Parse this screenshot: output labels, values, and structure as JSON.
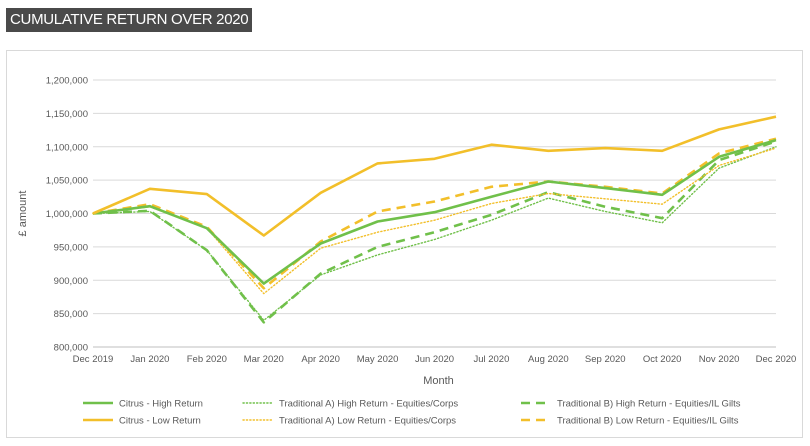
{
  "page": {
    "banner_title": "CUMULATIVE RETURN OVER 2020"
  },
  "chart_data": {
    "type": "line",
    "title": "",
    "xlabel": "Month",
    "ylabel": "£ amount",
    "ylim": [
      800000,
      1200000
    ],
    "ytick_step": 50000,
    "grid": "horizontal",
    "legend_position": "bottom",
    "categories": [
      "Dec 2019",
      "Jan 2020",
      "Feb 2020",
      "Mar 2020",
      "Apr 2020",
      "May 2020",
      "Jun 2020",
      "Jul 2020",
      "Aug 2020",
      "Sep 2020",
      "Oct 2020",
      "Nov 2020",
      "Dec 2020"
    ],
    "series": [
      {
        "name": "Citrus - High Return",
        "color": "#70c04a",
        "style": "solid",
        "values": [
          1000000,
          1011000,
          978000,
          895000,
          955000,
          988000,
          1002000,
          1025000,
          1048000,
          1038000,
          1028000,
          1085000,
          1110000
        ]
      },
      {
        "name": "Traditional A) High Return - Equities/Corps",
        "color": "#70c04a",
        "style": "dotted",
        "values": [
          1000000,
          1003000,
          945000,
          840000,
          908000,
          938000,
          961000,
          990000,
          1023000,
          1003000,
          986000,
          1068000,
          1100000
        ]
      },
      {
        "name": "Traditional B) High Return - Equities/IL Gilts",
        "color": "#70c04a",
        "style": "dashed",
        "values": [
          1000000,
          1004000,
          945000,
          837000,
          910000,
          950000,
          972000,
          998000,
          1032000,
          1010000,
          993000,
          1080000,
          1108000
        ]
      },
      {
        "name": "Citrus - Low Return",
        "color": "#f2bf2a",
        "style": "solid",
        "values": [
          1000000,
          1037000,
          1029000,
          967000,
          1031000,
          1075000,
          1082000,
          1103000,
          1094000,
          1098000,
          1094000,
          1126000,
          1145000
        ]
      },
      {
        "name": "Traditional A) Low Return - Equities/Corps",
        "color": "#f2bf2a",
        "style": "dotted",
        "values": [
          1000000,
          1010000,
          978000,
          880000,
          948000,
          972000,
          990000,
          1015000,
          1030000,
          1022000,
          1014000,
          1072000,
          1098000
        ]
      },
      {
        "name": "Traditional B) Low Return - Equities/IL Gilts",
        "color": "#f2bf2a",
        "style": "dashed",
        "values": [
          1000000,
          1014000,
          980000,
          888000,
          958000,
          1003000,
          1018000,
          1040000,
          1048000,
          1040000,
          1030000,
          1090000,
          1112000
        ]
      }
    ]
  }
}
